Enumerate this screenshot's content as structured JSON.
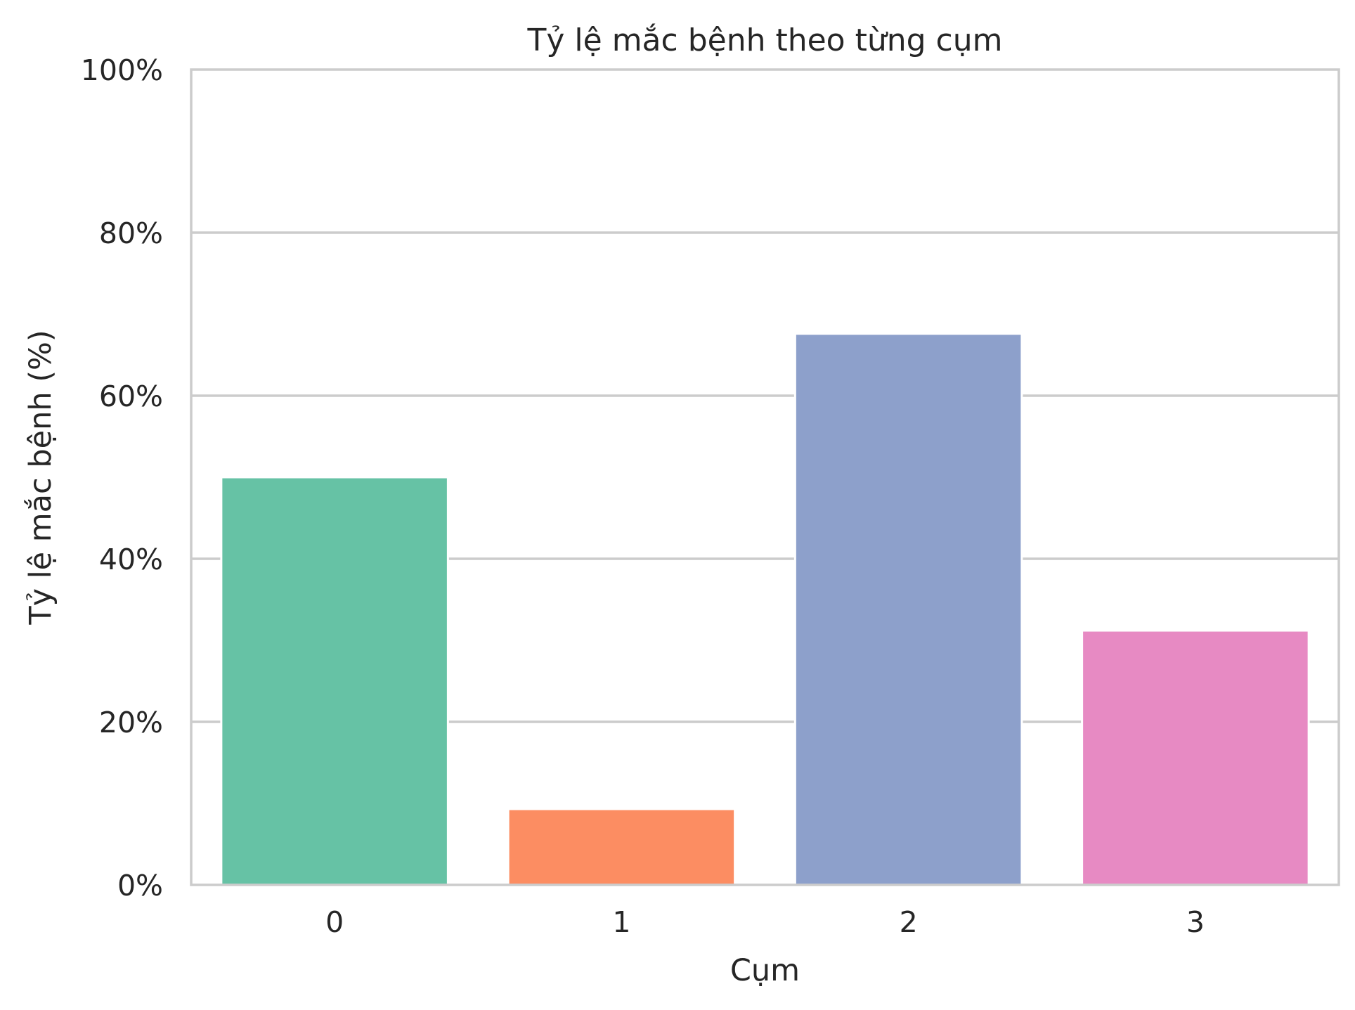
{
  "chart_data": {
    "type": "bar",
    "title": "Tỷ lệ mắc bệnh theo từng cụm",
    "xlabel": "Cụm",
    "ylabel": "Tỷ lệ mắc bệnh (%)",
    "categories": [
      "0",
      "1",
      "2",
      "3"
    ],
    "values": [
      50.0,
      9.3,
      67.6,
      31.2
    ],
    "ylim": [
      0,
      100
    ],
    "yticks": [
      0,
      20,
      40,
      60,
      80,
      100
    ],
    "ytick_labels": [
      "0%",
      "20%",
      "40%",
      "60%",
      "80%",
      "100%"
    ],
    "grid": "horizontal",
    "colors": [
      "#66c2a5",
      "#fc8d62",
      "#8da0cb",
      "#e78ac3"
    ]
  }
}
